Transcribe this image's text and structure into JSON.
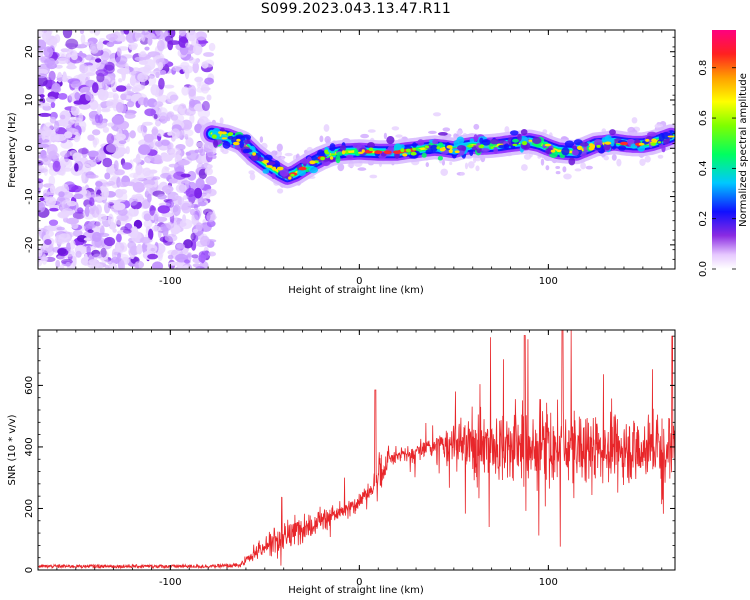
{
  "title": "S099.2023.043.13.47.R11",
  "chart_data": [
    {
      "type": "heatmap",
      "xlabel": "Height of straight line (km)",
      "ylabel": "Frequency (Hz)",
      "xlim": [
        -170,
        167
      ],
      "ylim": [
        -25,
        24.5
      ],
      "xticks": [
        -100,
        0,
        100
      ],
      "yticks": [
        -20,
        -10,
        0,
        10,
        20
      ],
      "noise_region_x": [
        -170,
        -80
      ],
      "ridge": {
        "x": [
          -78,
          -70,
          -62,
          -55,
          -48,
          -42,
          -38,
          -34,
          -30,
          -25,
          -20,
          -15,
          -10,
          -5,
          0,
          5,
          10,
          15,
          20,
          25,
          30,
          35,
          40,
          45,
          50,
          55,
          60,
          65,
          70,
          75,
          80,
          85,
          90,
          95,
          100,
          105,
          110,
          115,
          120,
          125,
          130,
          135,
          140,
          145,
          150,
          155,
          160,
          165
        ],
        "y": [
          3.0,
          2.4,
          1.2,
          -1.5,
          -3.5,
          -5.0,
          -5.8,
          -5.2,
          -4.2,
          -3.0,
          -2.0,
          -1.2,
          -0.8,
          -0.7,
          -0.6,
          -0.7,
          -0.8,
          -0.8,
          -0.8,
          -0.5,
          -0.3,
          0.0,
          0.2,
          0.0,
          -0.3,
          0.3,
          0.6,
          0.4,
          0.5,
          0.7,
          1.0,
          1.2,
          1.4,
          1.0,
          0.2,
          -0.5,
          -0.7,
          -0.8,
          0.0,
          0.8,
          1.0,
          1.3,
          1.0,
          0.8,
          0.8,
          1.2,
          1.8,
          2.5
        ]
      },
      "colorbar": {
        "label": "Normalized spectral amplitude",
        "range": [
          0,
          0.95
        ],
        "ticks": [
          0.0,
          0.2,
          0.4,
          0.6,
          0.8
        ]
      }
    },
    {
      "type": "line",
      "xlabel": "Height of straight line (km)",
      "ylabel": "SNR (10 * v/v)",
      "xlim": [
        -170,
        167
      ],
      "ylim": [
        0,
        780
      ],
      "xticks": [
        -100,
        0,
        100
      ],
      "yticks": [
        0,
        200,
        400,
        600
      ],
      "color": "#e8262a",
      "envelope": {
        "x": [
          -170,
          -80,
          -63,
          -60,
          -55,
          -50,
          -45,
          -40,
          -35,
          -30,
          -25,
          -20,
          -15,
          -10,
          -5,
          0,
          5,
          8,
          10,
          12,
          15,
          20,
          25,
          30,
          35,
          40,
          45,
          50,
          55,
          60,
          65,
          70,
          75,
          80,
          85,
          90,
          95,
          100,
          105,
          110,
          115,
          120,
          125,
          130,
          135,
          140,
          145,
          150,
          155,
          160,
          165
        ],
        "mean": [
          12,
          12,
          15,
          30,
          60,
          75,
          100,
          100,
          120,
          140,
          150,
          165,
          175,
          185,
          200,
          225,
          255,
          270,
          330,
          310,
          355,
          370,
          375,
          380,
          395,
          400,
          405,
          410,
          405,
          405,
          410,
          410,
          400,
          400,
          405,
          400,
          395,
          400,
          385,
          395,
          400,
          390,
          395,
          400,
          395,
          400,
          390,
          395,
          400,
          400,
          400
        ],
        "spread": [
          6,
          6,
          8,
          20,
          40,
          55,
          60,
          65,
          60,
          55,
          55,
          50,
          45,
          40,
          35,
          35,
          40,
          80,
          140,
          60,
          50,
          35,
          35,
          40,
          45,
          55,
          75,
          95,
          110,
          130,
          140,
          150,
          160,
          170,
          180,
          180,
          170,
          170,
          170,
          160,
          160,
          160,
          150,
          150,
          140,
          140,
          140,
          130,
          130,
          140,
          160
        ]
      }
    }
  ]
}
